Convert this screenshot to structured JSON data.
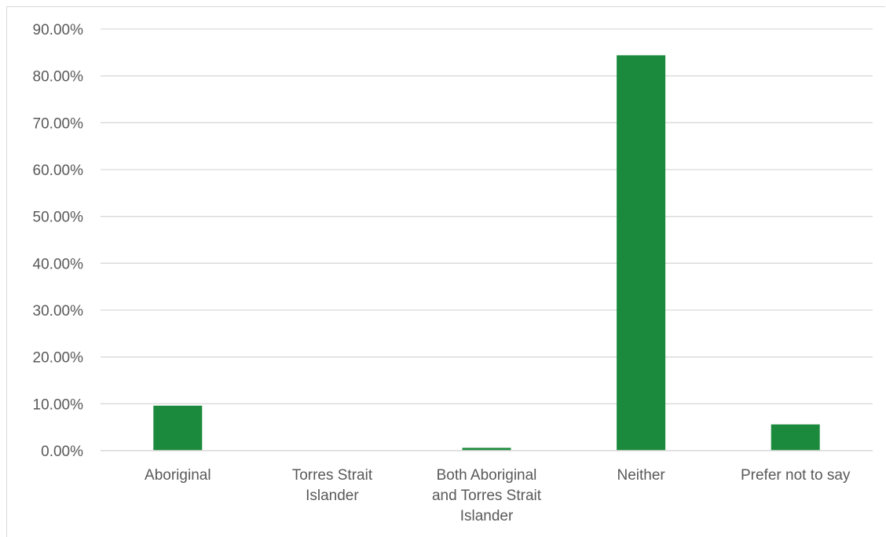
{
  "chart_data": {
    "type": "bar",
    "title": "",
    "xlabel": "",
    "ylabel": "",
    "categories": [
      [
        "Aboriginal"
      ],
      [
        "Torres Strait",
        "Islander"
      ],
      [
        "Both Aboriginal",
        "and Torres Strait",
        "Islander"
      ],
      [
        "Neither"
      ],
      [
        "Prefer not to say"
      ]
    ],
    "values": [
      9.6,
      0.0,
      0.6,
      84.4,
      5.6
    ],
    "ylim": [
      0,
      90
    ],
    "yticks": [
      0,
      10,
      20,
      30,
      40,
      50,
      60,
      70,
      80,
      90
    ],
    "ytick_labels": [
      "0.00%",
      "10.00%",
      "20.00%",
      "30.00%",
      "40.00%",
      "50.00%",
      "60.00%",
      "70.00%",
      "80.00%",
      "90.00%"
    ],
    "grid": true,
    "legend": "none",
    "colors": {
      "bar": "#1b8a3c",
      "grid": "#d9d9d9",
      "text": "#595959"
    }
  }
}
